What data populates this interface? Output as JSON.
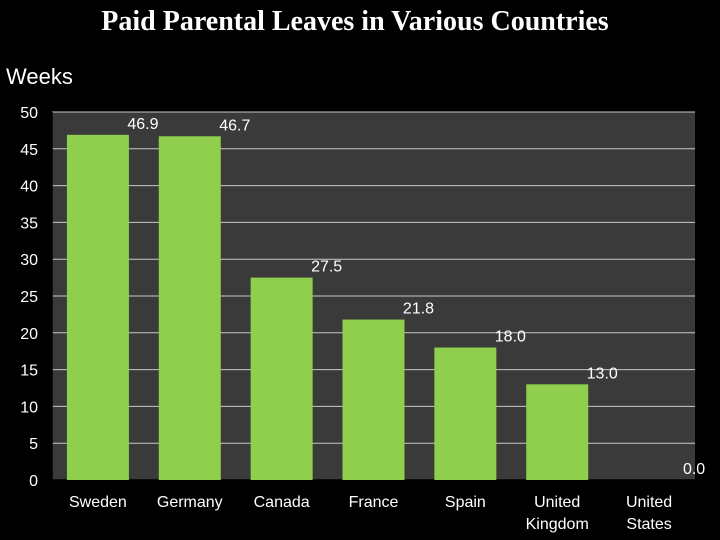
{
  "title": "Paid Parental Leaves in Various Countries",
  "colors": {
    "background": "#000000",
    "plot_area": "#3a3a3a",
    "gridline": "#c8c8c8",
    "bar": "#8fcf4d",
    "text": "#ffffff"
  },
  "chart_data": {
    "type": "bar",
    "title": "Paid Parental Leaves in Various Countries",
    "ylabel": "Weeks",
    "xlabel": "",
    "ylim": [
      0,
      50
    ],
    "yticks": [
      0,
      5,
      10,
      15,
      20,
      25,
      30,
      35,
      40,
      45,
      50
    ],
    "grid": true,
    "legend": "none",
    "categories": [
      [
        "Sweden"
      ],
      [
        "Germany"
      ],
      [
        "Canada"
      ],
      [
        "France"
      ],
      [
        "Spain"
      ],
      [
        "United",
        "Kingdom"
      ],
      [
        "United",
        "States"
      ]
    ],
    "values": [
      46.9,
      46.7,
      27.5,
      21.8,
      18.0,
      13.0,
      0.0
    ],
    "data_labels": [
      "46.9",
      "46.7",
      "27.5",
      "21.8",
      "18.0",
      "13.0",
      "0.0"
    ]
  }
}
